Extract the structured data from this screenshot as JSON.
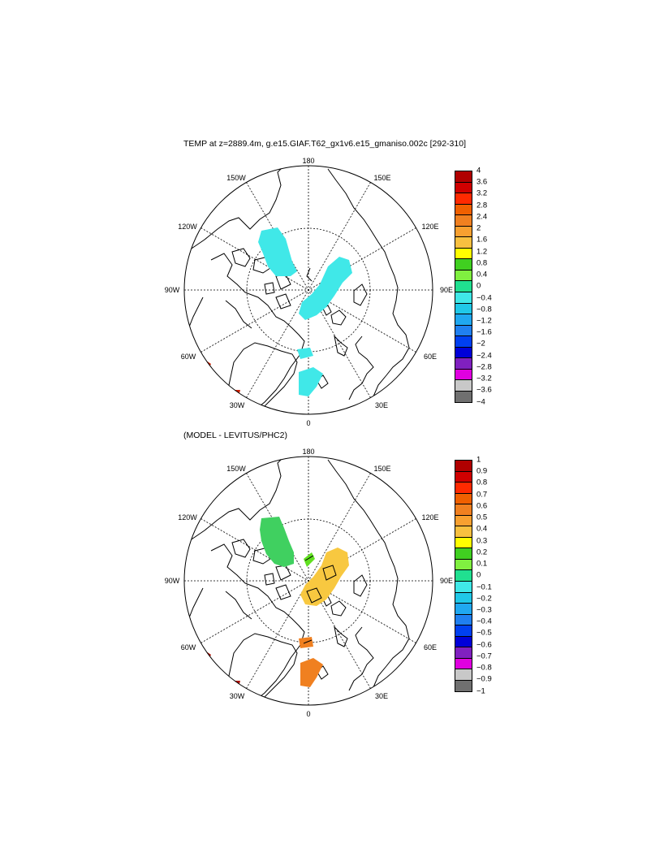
{
  "figure": {
    "title_top": "TEMP at z=2889.4m, g.e15.GIAF.T62_gx1v6.e15_gmaniso.002c [292-310]",
    "title_bottom": "(MODEL - LEVITUS/PHC2)"
  },
  "map_labels": {
    "lon_180": "180",
    "lon_0": "0",
    "lon_150w": "150W",
    "lon_150e": "150E",
    "lon_120w": "120W",
    "lon_120e": "120E",
    "lon_90w": "90W",
    "lon_90e": "90E",
    "lon_60w": "60W",
    "lon_60e": "60E",
    "lon_30w": "30W",
    "lon_30e": "30E"
  },
  "panels": [
    {
      "name": "model-temperature",
      "field_color_main": "#40e8e8",
      "colorbar": {
        "labels": [
          "4",
          "3.6",
          "3.2",
          "2.8",
          "2.4",
          "2",
          "1.6",
          "1.2",
          "0.8",
          "0.4",
          "0",
          "−0.4",
          "−0.8",
          "−1.2",
          "−1.6",
          "−2",
          "−2.4",
          "−2.8",
          "−3.2",
          "−3.6",
          "−4"
        ],
        "colors": [
          "#b00000",
          "#d00000",
          "#ff2a00",
          "#f06000",
          "#f08020",
          "#f8a030",
          "#f8c040",
          "#ffff00",
          "#40d020",
          "#80f040",
          "#20e090",
          "#40e8e8",
          "#20c8e8",
          "#20a8f0",
          "#2080f0",
          "#0040f0",
          "#0000d8",
          "#8020c0",
          "#e000e0",
          "#c8c8c8",
          "#707070"
        ]
      }
    },
    {
      "name": "model-minus-levitus",
      "colorbar": {
        "labels": [
          "1",
          "0.9",
          "0.8",
          "0.7",
          "0.6",
          "0.5",
          "0.4",
          "0.3",
          "0.2",
          "0.1",
          "0",
          "−0.1",
          "−0.2",
          "−0.3",
          "−0.4",
          "−0.5",
          "−0.6",
          "−0.7",
          "−0.8",
          "−0.9",
          "−1"
        ],
        "colors": [
          "#b00000",
          "#d00000",
          "#ff2a00",
          "#f06000",
          "#f08020",
          "#f8a030",
          "#f8c040",
          "#ffff00",
          "#40d020",
          "#80f040",
          "#20e090",
          "#40e8e8",
          "#20c8e8",
          "#20a8f0",
          "#2080f0",
          "#0040f0",
          "#0000d8",
          "#8020c0",
          "#e000e0",
          "#c8c8c8",
          "#707070"
        ]
      }
    }
  ]
}
